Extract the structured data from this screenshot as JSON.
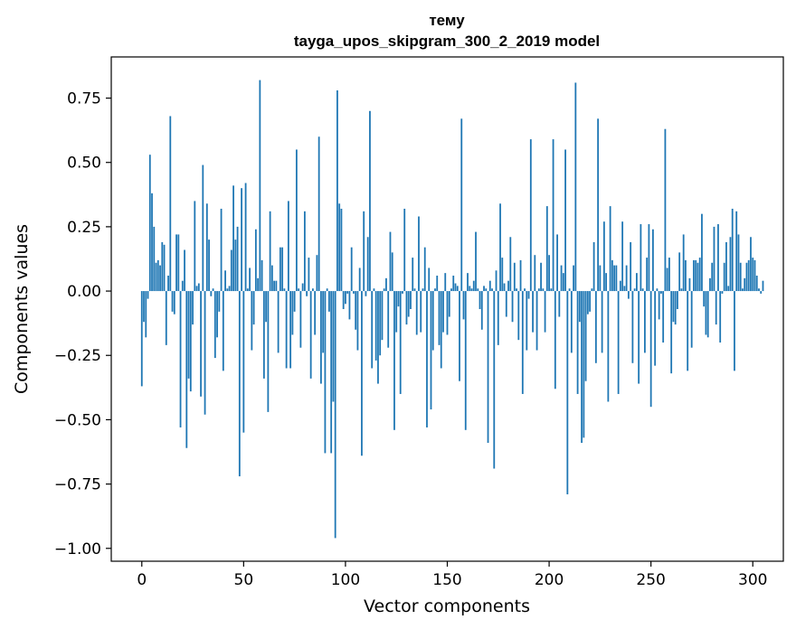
{
  "chart_data": {
    "type": "bar",
    "title": "тему",
    "subtitle": "tayga_upos_skipgram_300_2_2019 model",
    "xlabel": "Vector components",
    "ylabel": "Components values",
    "xlim": [
      -15,
      315
    ],
    "ylim": [
      -1.05,
      0.91
    ],
    "xticks": [
      0,
      50,
      100,
      150,
      200,
      250,
      300
    ],
    "yticks": [
      -1.0,
      -0.75,
      -0.5,
      -0.25,
      0.0,
      0.25,
      0.5,
      0.75
    ],
    "ytick_labels": [
      "−1.00",
      "−0.75",
      "−0.50",
      "−0.25",
      "0.00",
      "0.25",
      "0.50",
      "0.75"
    ],
    "grid": false,
    "bar_color": "#1f77b4",
    "values": [
      -0.37,
      -0.12,
      -0.18,
      -0.03,
      0.53,
      0.38,
      0.25,
      0.11,
      0.12,
      0.1,
      0.19,
      0.18,
      -0.21,
      0.06,
      0.68,
      -0.08,
      -0.09,
      0.22,
      0.22,
      -0.53,
      0.04,
      0.16,
      -0.61,
      -0.34,
      -0.39,
      -0.13,
      0.35,
      0.02,
      0.03,
      -0.41,
      0.49,
      -0.48,
      0.34,
      0.2,
      -0.02,
      0.01,
      -0.26,
      -0.18,
      -0.08,
      0.32,
      -0.31,
      0.08,
      0.01,
      0.02,
      0.16,
      0.41,
      0.2,
      0.25,
      -0.72,
      0.4,
      -0.55,
      0.42,
      0.01,
      0.09,
      -0.23,
      -0.13,
      0.24,
      0.05,
      0.82,
      0.12,
      -0.34,
      -0.12,
      -0.47,
      0.31,
      0.1,
      0.04,
      0.04,
      -0.24,
      0.17,
      0.17,
      0.01,
      -0.3,
      0.35,
      -0.3,
      -0.17,
      -0.08,
      0.55,
      0.01,
      -0.22,
      0.03,
      0.31,
      -0.02,
      0.13,
      -0.34,
      0.01,
      -0.17,
      0.14,
      0.6,
      -0.36,
      -0.24,
      -0.63,
      0.01,
      -0.08,
      -0.63,
      -0.43,
      -0.96,
      0.78,
      0.34,
      0.32,
      -0.07,
      -0.05,
      -0.01,
      -0.11,
      0.17,
      -0.01,
      -0.15,
      -0.23,
      0.09,
      -0.64,
      0.31,
      -0.02,
      0.21,
      0.7,
      -0.3,
      0.01,
      -0.27,
      -0.36,
      -0.25,
      -0.19,
      0.01,
      0.05,
      -0.22,
      0.23,
      0.15,
      -0.54,
      -0.16,
      -0.06,
      -0.4,
      -0.01,
      0.32,
      -0.13,
      -0.1,
      -0.07,
      0.13,
      0.01,
      -0.17,
      0.29,
      -0.16,
      0.01,
      0.17,
      -0.53,
      0.09,
      -0.46,
      -0.23,
      0.01,
      0.06,
      -0.21,
      -0.3,
      -0.16,
      0.07,
      -0.17,
      -0.1,
      0.01,
      0.06,
      0.03,
      0.02,
      -0.35,
      0.67,
      -0.11,
      -0.54,
      0.07,
      0.02,
      0.01,
      0.04,
      0.23,
      0.01,
      -0.07,
      -0.15,
      0.02,
      0.01,
      -0.59,
      0.04,
      0.01,
      -0.69,
      0.08,
      -0.21,
      0.34,
      0.13,
      0.03,
      -0.1,
      0.04,
      0.21,
      -0.12,
      0.11,
      0.01,
      -0.19,
      0.12,
      -0.4,
      0.01,
      -0.23,
      -0.03,
      0.59,
      -0.16,
      0.14,
      -0.23,
      0.01,
      0.11,
      0.01,
      -0.16,
      0.33,
      0.14,
      0.01,
      0.59,
      -0.38,
      0.22,
      -0.1,
      0.1,
      0.07,
      0.55,
      -0.79,
      0.01,
      -0.24,
      0.1,
      0.81,
      -0.4,
      -0.12,
      -0.59,
      -0.57,
      -0.35,
      -0.09,
      -0.08,
      0.01,
      0.19,
      -0.28,
      0.67,
      0.1,
      -0.24,
      0.27,
      0.07,
      -0.43,
      0.33,
      0.12,
      0.1,
      0.1,
      -0.4,
      0.04,
      0.27,
      0.02,
      0.1,
      -0.03,
      0.19,
      -0.28,
      0.01,
      0.07,
      -0.36,
      0.26,
      0.01,
      -0.24,
      0.13,
      0.26,
      -0.45,
      0.24,
      -0.29,
      0.01,
      -0.11,
      -0.01,
      -0.2,
      0.63,
      0.09,
      0.13,
      -0.32,
      -0.12,
      -0.13,
      -0.07,
      0.15,
      0.01,
      0.22,
      0.12,
      -0.31,
      0.05,
      -0.22,
      0.12,
      0.12,
      0.11,
      0.13,
      0.3,
      -0.06,
      -0.17,
      -0.18,
      0.05,
      0.11,
      0.25,
      -0.13,
      0.26,
      -0.2,
      -0.01,
      0.11,
      0.19,
      0.02,
      0.21,
      0.32,
      -0.31,
      0.31,
      0.22,
      0.11,
      0.01,
      0.05,
      0.11,
      0.12,
      0.21,
      0.13,
      0.12,
      0.06,
      0.01,
      -0.01,
      0.04
    ]
  }
}
